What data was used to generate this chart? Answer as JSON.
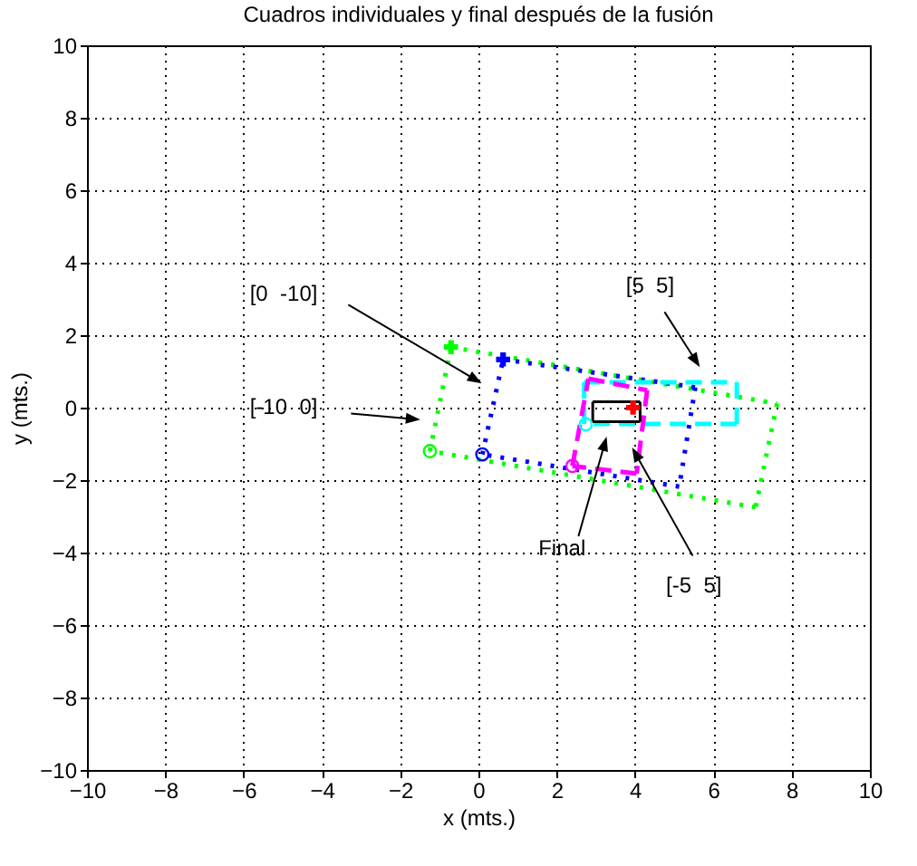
{
  "chart_data": {
    "type": "line",
    "title": "Cuadros individuales y final después de la fusión",
    "xlabel": "x (mts.)",
    "ylabel": "y (mts.)",
    "xlim": [
      -10,
      10
    ],
    "xticks": [
      -10,
      -8,
      -6,
      -4,
      -2,
      0,
      2,
      4,
      6,
      8,
      10
    ],
    "ylim": [
      -10,
      10
    ],
    "yticks": [
      -10,
      -8,
      -6,
      -4,
      -2,
      0,
      2,
      4,
      6,
      8,
      10
    ],
    "grid": true,
    "series": [
      {
        "color": "#00ff00",
        "line_style": "dotted",
        "x": [
          -0.7,
          7.63
        ],
        "values": [
          1.67,
          0.11
        ]
      },
      {
        "color": "#00ff00",
        "line_style": "dotted",
        "x": [
          7.63,
          7.08
        ],
        "values": [
          0.11,
          -2.75
        ]
      },
      {
        "color": "#00ff00",
        "line_style": "dotted",
        "x": [
          7.08,
          -1.24
        ],
        "values": [
          -2.75,
          -1.2
        ]
      },
      {
        "color": "#00ff00",
        "line_style": "dotted",
        "x": [
          -1.24,
          -0.7
        ],
        "values": [
          -1.2,
          1.67
        ]
      },
      {
        "color": "#0000ff",
        "line_style": "dotted",
        "x": [
          0.63,
          5.54
        ],
        "values": [
          1.33,
          0.56
        ]
      },
      {
        "color": "#0000ff",
        "line_style": "dotted",
        "x": [
          5.54,
          5.13
        ],
        "values": [
          0.56,
          -2.18
        ]
      },
      {
        "color": "#0000ff",
        "line_style": "dotted",
        "x": [
          5.13,
          0.1
        ],
        "values": [
          -2.18,
          -1.29
        ]
      },
      {
        "color": "#0000ff",
        "line_style": "dotted",
        "x": [
          0.1,
          0.63
        ],
        "values": [
          -1.29,
          1.33
        ]
      },
      {
        "color": "#00ffff",
        "line_style": "dashed",
        "x": [
          2.7,
          6.6
        ],
        "values": [
          0.7,
          0.7
        ]
      },
      {
        "color": "#00ffff",
        "line_style": "dashed",
        "x": [
          6.6,
          6.6
        ],
        "values": [
          0.7,
          -0.45
        ]
      },
      {
        "color": "#00ffff",
        "line_style": "dashed",
        "x": [
          6.6,
          2.7
        ],
        "values": [
          -0.45,
          -0.45
        ]
      },
      {
        "color": "#00ffff",
        "line_style": "dashed",
        "x": [
          2.7,
          2.7
        ],
        "values": [
          -0.45,
          0.7
        ]
      },
      {
        "color": "#ff00ff",
        "line_style": "dashed",
        "x": [
          2.81,
          4.31
        ],
        "values": [
          0.8,
          0.48
        ]
      },
      {
        "color": "#ff00ff",
        "line_style": "dashed",
        "x": [
          4.31,
          4.04
        ],
        "values": [
          0.48,
          -1.82
        ]
      },
      {
        "color": "#ff00ff",
        "line_style": "dashed",
        "x": [
          4.04,
          2.4
        ],
        "values": [
          -1.82,
          -1.61
        ]
      },
      {
        "color": "#ff00ff",
        "line_style": "dashed",
        "x": [
          2.4,
          2.81
        ],
        "values": [
          -1.61,
          0.8
        ]
      },
      {
        "color": "#000000",
        "line_style": "solid",
        "x": [
          2.92,
          4.13
        ],
        "values": [
          0.16,
          0.16
        ]
      },
      {
        "color": "#000000",
        "line_style": "solid",
        "x": [
          4.13,
          4.13
        ],
        "values": [
          0.16,
          -0.39
        ]
      },
      {
        "color": "#000000",
        "line_style": "solid",
        "x": [
          4.13,
          2.92
        ],
        "values": [
          -0.39,
          -0.39
        ]
      },
      {
        "color": "#000000",
        "line_style": "solid",
        "x": [
          2.92,
          2.92
        ],
        "values": [
          -0.39,
          0.16
        ]
      },
      {
        "type": "scatter",
        "marker": "cross",
        "color": "#00ff00",
        "x": [
          -0.7
        ],
        "values": [
          1.67
        ]
      },
      {
        "type": "scatter",
        "marker": "circle",
        "color": "#00ff00",
        "x": [
          -1.24
        ],
        "values": [
          -1.2
        ]
      },
      {
        "type": "scatter",
        "marker": "cross",
        "color": "#0000ff",
        "x": [
          0.63
        ],
        "values": [
          1.33
        ]
      },
      {
        "type": "scatter",
        "marker": "circle",
        "color": "#0000ff",
        "x": [
          0.1
        ],
        "values": [
          -1.29
        ]
      },
      {
        "type": "scatter",
        "marker": "circle",
        "color": "#00ffff",
        "x": [
          2.74
        ],
        "values": [
          -0.46
        ]
      },
      {
        "type": "scatter",
        "marker": "circle",
        "color": "#ff00ff",
        "x": [
          2.4
        ],
        "values": [
          -1.61
        ]
      },
      {
        "type": "scatter",
        "marker": "cross",
        "color": "#ff0000",
        "x": [
          3.95
        ],
        "values": [
          0
        ]
      }
    ],
    "annotations": [
      "[0  -10]",
      "[-10  0]",
      "[5  5]",
      {
        "text": "[-5  5]",
        "x": 4.11,
        "y": -1.2
      },
      "Final"
    ]
  }
}
